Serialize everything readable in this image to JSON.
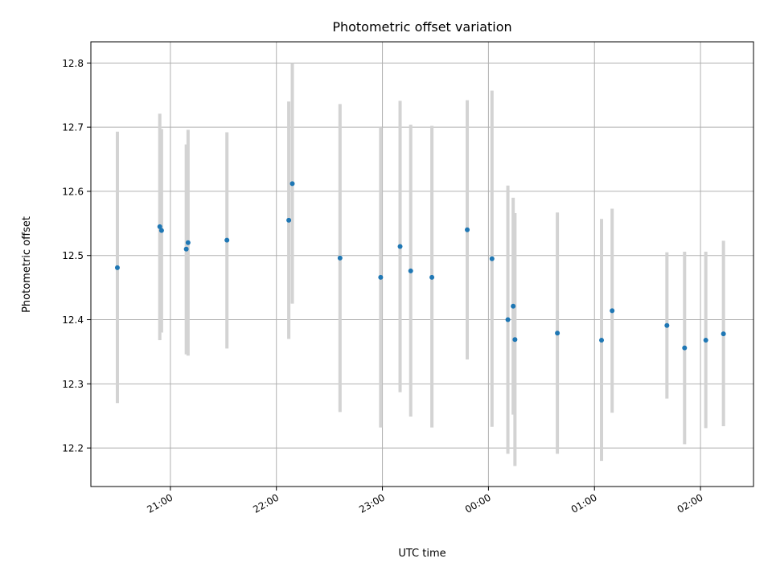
{
  "chart_data": {
    "type": "scatter",
    "title": "Photometric offset variation",
    "xlabel": "UTC time",
    "ylabel": "Photometric offset",
    "ylim": [
      12.14,
      12.833
    ],
    "xlim": [
      "20:15",
      "02:30"
    ],
    "x_ticks": [
      "21:00",
      "22:00",
      "23:00",
      "00:00",
      "01:00",
      "02:00"
    ],
    "y_ticks": [
      12.2,
      12.3,
      12.4,
      12.5,
      12.6,
      12.7,
      12.8
    ],
    "grid": true,
    "legend": "none",
    "colors": {
      "marker": "#1f77b4",
      "error_bar": "#d3d3d3",
      "grid": "#b0b0b0"
    },
    "points": [
      {
        "x": "20:30",
        "y": 12.481,
        "yerr_low": 12.27,
        "yerr_high": 12.693
      },
      {
        "x": "20:54",
        "y": 12.545,
        "yerr_low": 12.368,
        "yerr_high": 12.721
      },
      {
        "x": "20:55",
        "y": 12.539,
        "yerr_low": 12.38,
        "yerr_high": 12.697
      },
      {
        "x": "21:09",
        "y": 12.51,
        "yerr_low": 12.346,
        "yerr_high": 12.673
      },
      {
        "x": "21:10",
        "y": 12.52,
        "yerr_low": 12.344,
        "yerr_high": 12.696
      },
      {
        "x": "21:32",
        "y": 12.524,
        "yerr_low": 12.355,
        "yerr_high": 12.692
      },
      {
        "x": "22:07",
        "y": 12.555,
        "yerr_low": 12.37,
        "yerr_high": 12.74
      },
      {
        "x": "22:09",
        "y": 12.612,
        "yerr_low": 12.425,
        "yerr_high": 12.8
      },
      {
        "x": "22:36",
        "y": 12.496,
        "yerr_low": 12.256,
        "yerr_high": 12.736
      },
      {
        "x": "22:59",
        "y": 12.466,
        "yerr_low": 12.232,
        "yerr_high": 12.7
      },
      {
        "x": "23:10",
        "y": 12.514,
        "yerr_low": 12.287,
        "yerr_high": 12.741
      },
      {
        "x": "23:16",
        "y": 12.476,
        "yerr_low": 12.249,
        "yerr_high": 12.704
      },
      {
        "x": "23:28",
        "y": 12.466,
        "yerr_low": 12.232,
        "yerr_high": 12.702
      },
      {
        "x": "23:48",
        "y": 12.54,
        "yerr_low": 12.338,
        "yerr_high": 12.742
      },
      {
        "x": "00:02",
        "y": 12.495,
        "yerr_low": 12.233,
        "yerr_high": 12.757
      },
      {
        "x": "00:11",
        "y": 12.4,
        "yerr_low": 12.191,
        "yerr_high": 12.609
      },
      {
        "x": "00:14",
        "y": 12.421,
        "yerr_low": 12.252,
        "yerr_high": 12.59
      },
      {
        "x": "00:15",
        "y": 12.369,
        "yerr_low": 12.172,
        "yerr_high": 12.566
      },
      {
        "x": "00:39",
        "y": 12.379,
        "yerr_low": 12.191,
        "yerr_high": 12.567
      },
      {
        "x": "01:04",
        "y": 12.368,
        "yerr_low": 12.18,
        "yerr_high": 12.557
      },
      {
        "x": "01:10",
        "y": 12.414,
        "yerr_low": 12.255,
        "yerr_high": 12.573
      },
      {
        "x": "01:41",
        "y": 12.391,
        "yerr_low": 12.277,
        "yerr_high": 12.505
      },
      {
        "x": "01:51",
        "y": 12.356,
        "yerr_low": 12.206,
        "yerr_high": 12.506
      },
      {
        "x": "02:03",
        "y": 12.368,
        "yerr_low": 12.231,
        "yerr_high": 12.506
      },
      {
        "x": "02:13",
        "y": 12.378,
        "yerr_low": 12.234,
        "yerr_high": 12.523
      }
    ]
  }
}
